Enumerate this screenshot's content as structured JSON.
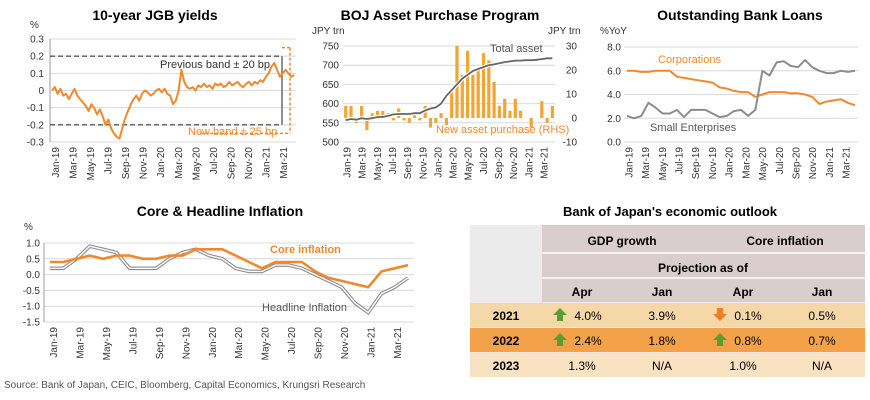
{
  "source": "Source: Bank of Japan, CEIC, Bloomberg, Capital Economics, Krungsri Research",
  "month_labels": [
    "Jan-19",
    "Mar-19",
    "May-19",
    "Jul-19",
    "Sep-19",
    "Nov-19",
    "Jan-20",
    "Mar-20",
    "May-20",
    "Jul-20",
    "Sep-20",
    "Nov-20",
    "Jan-21",
    "Mar-21"
  ],
  "colors": {
    "orange": "#F0892E",
    "gray": "#8C8C8C",
    "dark": "#555555",
    "table_header": "#D9CDCD",
    "row_2021": "#F6D8A8",
    "row_2022": "#F3A24A",
    "row_2023": "#F9E2C2",
    "arrow_up": "#5A9E2E",
    "arrow_down": "#F07F23"
  },
  "chart_data": [
    {
      "type": "line",
      "title": "10-year JGB yields",
      "ylabel": "%",
      "ylim": [
        -0.3,
        0.3
      ],
      "yticks": [
        "0.3",
        "0.2",
        "0.1",
        "0",
        "-0.1",
        "-0.2",
        "-0.3"
      ],
      "annotations": {
        "upper": "Previous band ± 20 bp",
        "lower": "New band ± 25 bp"
      },
      "bands": {
        "previous": [
          -0.2,
          0.2
        ],
        "new": [
          -0.25,
          0.25
        ]
      },
      "series": [
        {
          "values": [
            0.0,
            0.02,
            -0.02,
            0.01,
            -0.03,
            -0.02,
            -0.05,
            -0.02,
            0.01,
            -0.03,
            -0.05,
            -0.07,
            -0.09,
            -0.12,
            -0.08,
            -0.1,
            -0.14,
            -0.11,
            -0.15,
            -0.2,
            -0.17,
            -0.22,
            -0.25,
            -0.27,
            -0.28,
            -0.22,
            -0.16,
            -0.12,
            -0.08,
            -0.05,
            -0.03,
            -0.06,
            -0.02,
            0.0,
            -0.01,
            -0.03,
            -0.02,
            0.0,
            0.01,
            -0.01,
            0.01,
            -0.02,
            -0.03,
            -0.08,
            -0.06,
            0.0,
            0.12,
            0.05,
            0.02,
            0.01,
            0.02,
            0.0,
            0.03,
            0.02,
            0.04,
            0.02,
            0.03,
            0.01,
            0.04,
            0.03,
            0.04,
            0.02,
            0.03,
            0.05,
            0.03,
            0.04,
            0.05,
            0.03,
            0.02,
            0.04,
            0.05,
            0.03,
            0.05,
            0.04,
            0.06,
            0.05,
            0.08,
            0.1,
            0.14,
            0.16,
            0.12,
            0.08,
            0.1,
            0.12,
            0.1,
            0.08,
            0.09
          ]
        }
      ]
    },
    {
      "type": "bar+line",
      "title": "BOJ Asset Purchase Program",
      "left_unit": "JPY trn",
      "right_unit": "JPY trn",
      "ylim_left": [
        500,
        750
      ],
      "yticks_left": [
        "750",
        "700",
        "650",
        "600",
        "550",
        "500"
      ],
      "ylim_right": [
        -10,
        30
      ],
      "yticks_right": [
        "30",
        "20",
        "10",
        "0",
        "-10"
      ],
      "line_label": "Total asset",
      "bar_label": "New asset purchase (RHS)",
      "line": [
        557,
        560,
        558,
        562,
        560,
        562,
        565,
        565,
        568,
        572,
        573,
        573,
        573,
        575,
        575,
        582,
        587,
        590,
        600,
        620,
        635,
        650,
        665,
        675,
        685,
        690,
        695,
        700,
        702,
        705,
        708,
        710,
        712,
        712,
        713,
        713,
        714,
        716,
        718,
        718
      ],
      "bars": [
        5,
        5,
        -2,
        5,
        -5,
        2,
        3,
        3,
        2,
        -1,
        4,
        -1,
        -2,
        2,
        -1,
        5,
        -4,
        -2,
        2,
        -3,
        12,
        30,
        18,
        28,
        18,
        20,
        27,
        24,
        15,
        5,
        8,
        3,
        8,
        3,
        0,
        -4,
        0,
        7,
        -2,
        5
      ]
    },
    {
      "type": "line",
      "title": "Outstanding Bank Loans",
      "ylabel": "%YoY",
      "ylim": [
        0,
        8
      ],
      "yticks": [
        "8.0",
        "6.0",
        "4.0",
        "2.0",
        "0.0"
      ],
      "series": [
        {
          "name": "Corporations",
          "values": [
            6.0,
            6.0,
            5.9,
            5.9,
            6.0,
            6.0,
            6.0,
            5.5,
            5.4,
            5.3,
            5.2,
            5.1,
            5.0,
            4.6,
            4.5,
            4.3,
            4.2,
            4.2,
            3.8,
            4.0,
            4.2,
            4.2,
            4.2,
            4.1,
            4.1,
            4.0,
            3.8,
            3.2,
            3.4,
            3.5,
            3.6,
            3.3,
            3.1
          ]
        },
        {
          "name": "Small Enterprises",
          "values": [
            2.2,
            2.0,
            2.2,
            3.3,
            2.9,
            2.4,
            2.4,
            2.7,
            2.1,
            2.7,
            2.7,
            2.7,
            2.4,
            2.1,
            2.2,
            2.6,
            2.7,
            2.2,
            2.7,
            6.0,
            5.6,
            6.7,
            6.8,
            6.4,
            6.3,
            6.9,
            6.3,
            6.0,
            5.8,
            5.8,
            6.0,
            5.9,
            6.0
          ]
        }
      ]
    },
    {
      "type": "line",
      "title": "Core & Headline Inflation",
      "ylabel": "%",
      "ylim": [
        -1.5,
        1.0
      ],
      "yticks": [
        "1.0",
        "0.5",
        "0.0",
        "-0.5",
        "-1.0",
        "-1.5"
      ],
      "series": [
        {
          "name": "Core inflation",
          "values": [
            0.4,
            0.4,
            0.5,
            0.6,
            0.5,
            0.6,
            0.6,
            0.5,
            0.5,
            0.6,
            0.6,
            0.8,
            0.8,
            0.8,
            0.6,
            0.4,
            0.2,
            0.4,
            0.4,
            0.4,
            0.1,
            -0.1,
            -0.2,
            -0.3,
            -0.4,
            0.1,
            0.2,
            0.3
          ]
        },
        {
          "name": "Headline Inflation",
          "values": [
            0.2,
            0.2,
            0.5,
            0.9,
            0.8,
            0.7,
            0.2,
            0.2,
            0.2,
            0.5,
            0.7,
            0.8,
            0.6,
            0.5,
            0.2,
            0.1,
            0.1,
            0.3,
            0.3,
            0.2,
            0.0,
            -0.2,
            -0.4,
            -0.9,
            -1.2,
            -0.6,
            -0.4,
            -0.1
          ]
        }
      ]
    }
  ],
  "outlook_table": {
    "title": "Bank of Japan's economic outlook",
    "group_headers": [
      "GDP growth",
      "Core inflation"
    ],
    "subheader": "Projection as of",
    "columns": [
      "Apr",
      "Jan",
      "Apr",
      "Jan"
    ],
    "rows": [
      {
        "year": "2021",
        "cells": [
          "4.0%",
          "3.9%",
          "0.1%",
          "0.5%"
        ],
        "arrows": [
          "up",
          "",
          "down",
          ""
        ]
      },
      {
        "year": "2022",
        "cells": [
          "2.4%",
          "1.8%",
          "0.8%",
          "0.7%"
        ],
        "arrows": [
          "up",
          "",
          "up",
          ""
        ]
      },
      {
        "year": "2023",
        "cells": [
          "1.3%",
          "N/A",
          "1.0%",
          "N/A"
        ],
        "arrows": [
          "",
          "",
          "",
          ""
        ]
      }
    ]
  }
}
